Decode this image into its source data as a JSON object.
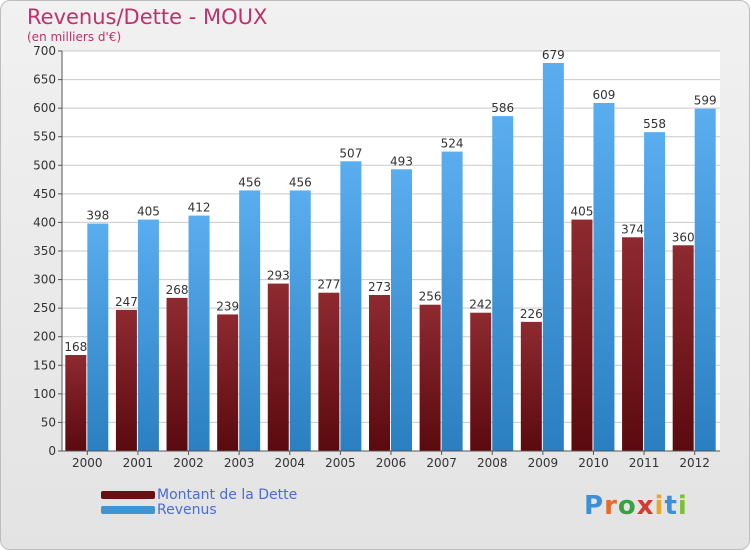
{
  "title": "Revenus/Dette - MOUX",
  "subtitle": "(en milliers d'€)",
  "colors": {
    "dette": "#7a1a1e",
    "revenus": "#3d95d6",
    "title": "#c0306a",
    "legend_text": "#4a6cd4"
  },
  "legend": {
    "dette_label": "Montant de la Dette",
    "revenus_label": "Revenus"
  },
  "logo": {
    "text": "Proxiti"
  },
  "chart_data": {
    "type": "bar",
    "title": "Revenus/Dette - MOUX",
    "subtitle": "(en milliers d'€)",
    "xlabel": "",
    "ylabel": "",
    "ylim": [
      0,
      700
    ],
    "yticks": [
      0,
      50,
      100,
      150,
      200,
      250,
      300,
      350,
      400,
      450,
      500,
      550,
      600,
      650,
      700
    ],
    "grid": true,
    "legend_position": "bottom-left",
    "categories": [
      "2000",
      "2001",
      "2002",
      "2003",
      "2004",
      "2005",
      "2006",
      "2007",
      "2008",
      "2009",
      "2010",
      "2011",
      "2012"
    ],
    "series": [
      {
        "name": "Montant de la Dette",
        "values": [
          168,
          247,
          268,
          239,
          293,
          277,
          273,
          256,
          242,
          226,
          405,
          374,
          360
        ]
      },
      {
        "name": "Revenus",
        "values": [
          398,
          405,
          412,
          456,
          456,
          507,
          493,
          524,
          586,
          679,
          609,
          558,
          599
        ]
      }
    ]
  }
}
